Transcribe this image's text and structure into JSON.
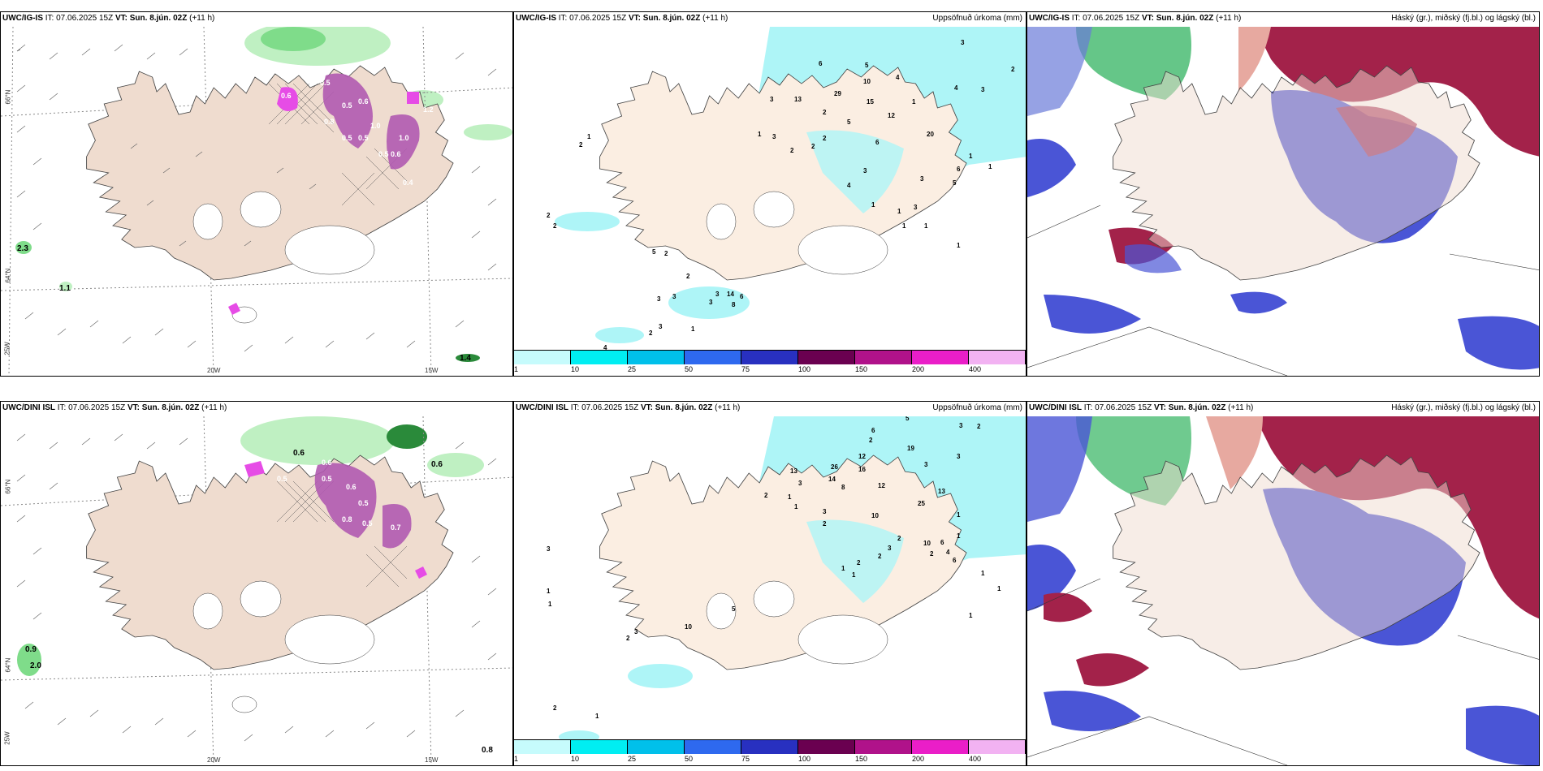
{
  "colors": {
    "land": "#efdccf",
    "land_light": "#fbeee2",
    "cyan_precip": "#aef5f7",
    "cyan_mid": "#00e6ef",
    "green_light": "#bff0c2",
    "green_mid": "#7fdc8a",
    "purple": "#b05ab0",
    "magenta": "#e64ce6",
    "blue_cloud": "#4a55d6",
    "red_cloud": "#a3224a"
  },
  "panels": {
    "top_left": {
      "model": "UWC/IG-IS",
      "it_label": "IT:",
      "it_value": "07.06.2025 15Z",
      "vt_label": "VT:",
      "vt_value": "Sun. 8.jún. 02Z",
      "lead": "(+11 h)",
      "numbers": [
        "0.5",
        "0.9",
        "1.2",
        "1.0",
        "0.6",
        "0.5",
        "0.6",
        "1.0",
        "0.5",
        "0.5",
        "0.8",
        "0.5",
        "0.6",
        "0.4",
        "2.3",
        "1.1",
        "1.4"
      ]
    },
    "top_mid": {
      "model": "UWC/IG-IS",
      "it_label": "IT:",
      "it_value": "07.06.2025 15Z",
      "vt_label": "VT:",
      "vt_value": "Sun. 8.jún. 02Z",
      "lead": "(+11 h)",
      "right_title": "Uppsöfnuð úrkoma (mm)",
      "numbers": [
        "3",
        "2",
        "6",
        "5",
        "13",
        "3",
        "29",
        "10",
        "15",
        "1",
        "4",
        "4",
        "5",
        "12",
        "3",
        "2",
        "6",
        "20",
        "1",
        "1",
        "3",
        "2",
        "2",
        "2",
        "2",
        "1",
        "3",
        "4",
        "3",
        "5",
        "6",
        "1",
        "1",
        "1",
        "3",
        "1",
        "1",
        "1",
        "2",
        "2",
        "5",
        "2",
        "14",
        "6",
        "2",
        "3",
        "8",
        "3",
        "3",
        "3",
        "4",
        "2",
        "3",
        "1",
        "1",
        "1"
      ]
    },
    "top_right": {
      "model": "UWC/IG-IS",
      "it_label": "IT:",
      "it_value": "07.06.2025 15Z",
      "vt_label": "VT:",
      "vt_value": "Sun. 8.jún. 02Z",
      "lead": "(+11 h)",
      "right_title": "Háský (gr.), miðský (fj.bl.) og lágský (bl.)"
    },
    "bottom_left": {
      "model": "UWC/DINI ISL",
      "it_label": "IT:",
      "it_value": "07.06.2025 15Z",
      "vt_label": "VT:",
      "vt_value": "Sun. 8.jún. 02Z",
      "lead": "(+11 h)",
      "numbers": [
        "0.6",
        "0.5",
        "0.5",
        "0.6",
        "0.5",
        "0.8",
        "0.5",
        "0.6",
        "0.7",
        "0.9",
        "2.0",
        "0.6",
        "0.8"
      ]
    },
    "bottom_mid": {
      "model": "UWC/DINI ISL",
      "it_label": "IT:",
      "it_value": "07.06.2025 15Z",
      "vt_label": "VT:",
      "vt_value": "Sun. 8.jún. 02Z",
      "lead": "(+11 h)",
      "right_title": "Uppsöfnuð úrkoma (mm)",
      "numbers": [
        "5",
        "3",
        "2",
        "6",
        "2",
        "19",
        "3",
        "3",
        "26",
        "12",
        "13",
        "14",
        "16",
        "8",
        "12",
        "3",
        "1",
        "2",
        "1",
        "13",
        "25",
        "10",
        "3",
        "2",
        "1",
        "2",
        "2",
        "3",
        "6",
        "4",
        "10",
        "6",
        "2",
        "1",
        "1",
        "2",
        "1",
        "1",
        "5",
        "10",
        "3",
        "3",
        "2",
        "1",
        "1",
        "1",
        "2",
        "1",
        "1"
      ]
    },
    "bottom_right": {
      "model": "UWC/DINI ISL",
      "it_label": "IT:",
      "it_value": "07.06.2025 15Z",
      "vt_label": "VT:",
      "vt_value": "Sun. 8.jún. 02Z",
      "lead": "(+11 h)",
      "right_title": "Háský (gr.), miðský (fj.bl.) og lágský (bl.)"
    }
  },
  "axis_labels": {
    "lat_66": "66°N",
    "lat_64": "64°N",
    "lon_20": "20W",
    "lon_15": "15W",
    "lon_25": "25W"
  },
  "colorbar": {
    "ticks": [
      "1",
      "10",
      "25",
      "50",
      "75",
      "100",
      "150",
      "200",
      "400"
    ],
    "colors": [
      "#c6fbfc",
      "#00eef2",
      "#00c0ea",
      "#2e69ef",
      "#2830c0",
      "#6a0050",
      "#b0128a",
      "#ea1ec8",
      "#f2b2f2"
    ]
  }
}
